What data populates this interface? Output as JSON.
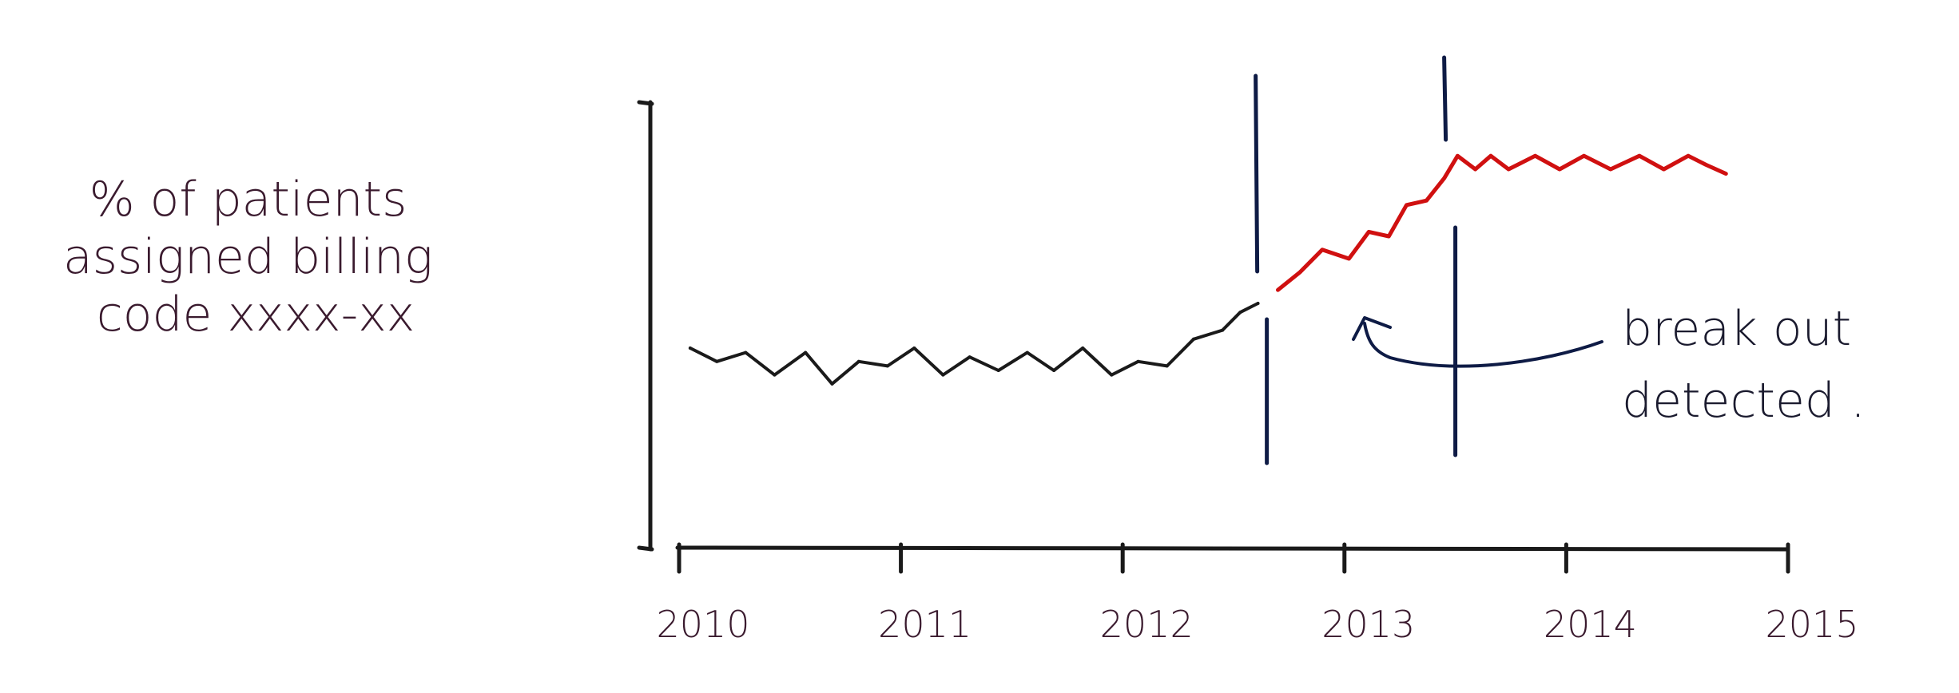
{
  "chart_data": {
    "type": "line",
    "title": "",
    "ylabel": "% of patients assigned billing code xxxx-xx",
    "xlabel": "",
    "x_ticks": [
      "2010",
      "2011",
      "2012",
      "2013",
      "2014",
      "2015"
    ],
    "xlim": [
      2010,
      2015
    ],
    "ylim": [
      0,
      100
    ],
    "y_tick_labels_shown": false,
    "grid": false,
    "legend": "none",
    "series": [
      {
        "color": "#1a1a1a",
        "segment": "baseline",
        "x": [
          2010.05,
          2010.17,
          2010.3,
          2010.43,
          2010.57,
          2010.69,
          2010.81,
          2010.94,
          2011.06,
          2011.19,
          2011.31,
          2011.44,
          2011.57,
          2011.69,
          2011.82,
          2011.95,
          2012.07,
          2012.2,
          2012.32,
          2012.45,
          2012.53,
          2012.61
        ],
        "y": [
          45,
          42,
          44,
          39,
          44,
          37,
          42,
          41,
          45,
          39,
          43,
          40,
          44,
          40,
          45,
          39,
          42,
          41,
          47,
          49,
          53,
          55
        ]
      },
      {
        "color": "#d01010",
        "segment": "after break",
        "x": [
          2012.7,
          2012.8,
          2012.9,
          2013.02,
          2013.11,
          2013.2,
          2013.28,
          2013.37,
          2013.45,
          2013.51,
          2013.59,
          2013.66,
          2013.74,
          2013.86,
          2013.97,
          2014.08,
          2014.2,
          2014.33,
          2014.44,
          2014.55,
          2014.63,
          2014.72
        ],
        "y": [
          58,
          62,
          67,
          65,
          71,
          70,
          77,
          78,
          83,
          88,
          85,
          88,
          85,
          88,
          85,
          88,
          85,
          88,
          85,
          88,
          86,
          84
        ]
      }
    ],
    "annotation": {
      "text_line1": "break out",
      "text_line2": "detected .",
      "arrow_color": "#0e1b45"
    },
    "marker_lines": {
      "color": "#0e1b45",
      "x": [
        2012.65,
        2013.5
      ]
    },
    "colors": {
      "axis": "#1a1a1a",
      "label_text": "#3a1a2e",
      "baseline_line": "#1a1a1a",
      "breakout_line": "#d01010",
      "marker": "#0e1b45"
    }
  }
}
